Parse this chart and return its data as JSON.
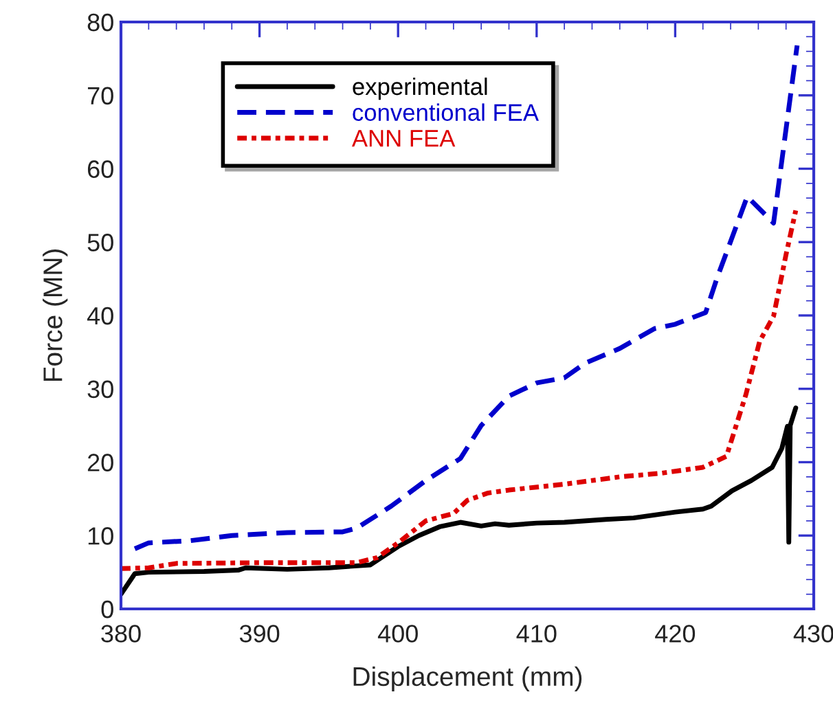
{
  "chart_data": {
    "type": "line",
    "xlabel": "Displacement (mm)",
    "ylabel": "Force (MN)",
    "xlim": [
      380,
      430
    ],
    "xticks": [
      380,
      390,
      400,
      410,
      420,
      430
    ],
    "ylim": [
      0,
      80
    ],
    "yticks": [
      0,
      10,
      20,
      30,
      40,
      50,
      60,
      70,
      80
    ],
    "grid": false,
    "legend": "top left",
    "series": [
      {
        "name": "experimental",
        "color": "#000000",
        "line_style": "solid",
        "x": [
          380,
          381,
          382,
          386,
          388.5,
          389,
          392,
          395,
          398,
          400,
          401.5,
          403,
          404.5,
          406,
          407,
          408,
          410,
          412,
          415,
          417,
          420,
          422,
          422.6,
          424.1,
          425.5,
          427,
          427.7,
          428.1,
          428.2,
          428.3,
          428.7
        ],
        "values": [
          2,
          4.8,
          5,
          5.1,
          5.3,
          5.6,
          5.4,
          5.6,
          6,
          8.5,
          10,
          11.2,
          11.8,
          11.3,
          11.6,
          11.4,
          11.7,
          11.8,
          12.2,
          12.4,
          13.2,
          13.6,
          14,
          16.1,
          17.5,
          19.3,
          21.9,
          24.9,
          9.1,
          25,
          27.4
        ]
      },
      {
        "name": "conventional FEA",
        "color": "#0000cc",
        "line_style": "dashed",
        "x": [
          381,
          382,
          385,
          388,
          392,
          396,
          397,
          399.5,
          402,
          404.5,
          406,
          408,
          410,
          412,
          413.5,
          416,
          418.5,
          420,
          422.2,
          423,
          425.2,
          427.1,
          428.8
        ],
        "values": [
          8.2,
          9,
          9.3,
          10,
          10.4,
          10.5,
          11,
          14,
          17.5,
          20.5,
          25,
          29,
          30.8,
          31.5,
          33.5,
          35.5,
          38.2,
          38.8,
          40.4,
          45,
          56.2,
          52.6,
          76.8
        ]
      },
      {
        "name": "ANN FEA",
        "color": "#dd0000",
        "line_style": "dotted",
        "x": [
          380,
          382,
          384,
          390,
          397,
          398.5,
          400,
          402,
          404,
          405,
          406.5,
          408,
          412,
          416,
          419,
          422,
          423.7,
          425.1,
          426.1,
          427.1,
          428,
          428.7
        ],
        "values": [
          5.5,
          5.6,
          6.2,
          6.3,
          6.3,
          7,
          9,
          12,
          13,
          14.8,
          15.8,
          16.2,
          17,
          18,
          18.5,
          19.3,
          20.8,
          29.2,
          36.5,
          39.9,
          48.3,
          54.3
        ]
      }
    ]
  }
}
